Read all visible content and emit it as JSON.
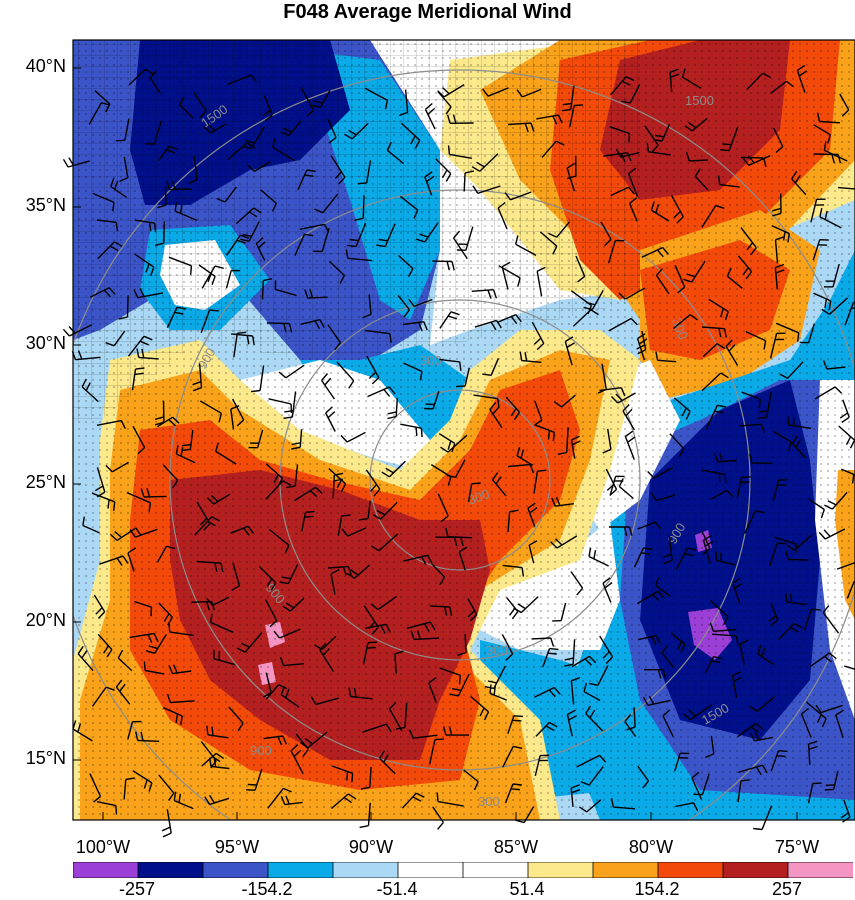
{
  "title": "F048 Average Meridional Wind",
  "latitude_labels": [
    "40°N",
    "35°N",
    "30°N",
    "25°N",
    "20°N",
    "15°N"
  ],
  "longitude_labels": [
    "100°W",
    "95°W",
    "90°W",
    "85°W",
    "80°W",
    "75°W"
  ],
  "contour_labels": [
    "1500",
    "900",
    "300",
    "300",
    "900",
    "900",
    "300",
    "300",
    "900",
    "1500",
    "1500",
    "300"
  ],
  "colorbar": {
    "labels": [
      "-257",
      "-154.2",
      "-51.4",
      "51.4",
      "154.2",
      "257"
    ],
    "colors": [
      "#9b3fd6",
      "#00108a",
      "#3b55c9",
      "#0aa9e8",
      "#aad8f5",
      "#ffffff",
      "#ffffff",
      "#fbe98c",
      "#f9a21a",
      "#f34a0a",
      "#b3201f",
      "#f595c4"
    ]
  },
  "chart_data": {
    "type": "heatmap",
    "title": "F048 Average Meridional Wind",
    "x_ticks": [
      "100°W",
      "95°W",
      "90°W",
      "85°W",
      "80°W",
      "75°W"
    ],
    "y_ticks": [
      "40°N",
      "35°N",
      "30°N",
      "25°N",
      "20°N",
      "15°N"
    ],
    "xlim": [
      -100.1,
      -73.1
    ],
    "ylim": [
      13,
      40.8
    ],
    "levels": [
      -257,
      -154.2,
      -51.4,
      51.4,
      154.2,
      257
    ],
    "overlays": [
      "wind barbs",
      "stippling",
      "gray contours",
      "county boundaries"
    ]
  }
}
